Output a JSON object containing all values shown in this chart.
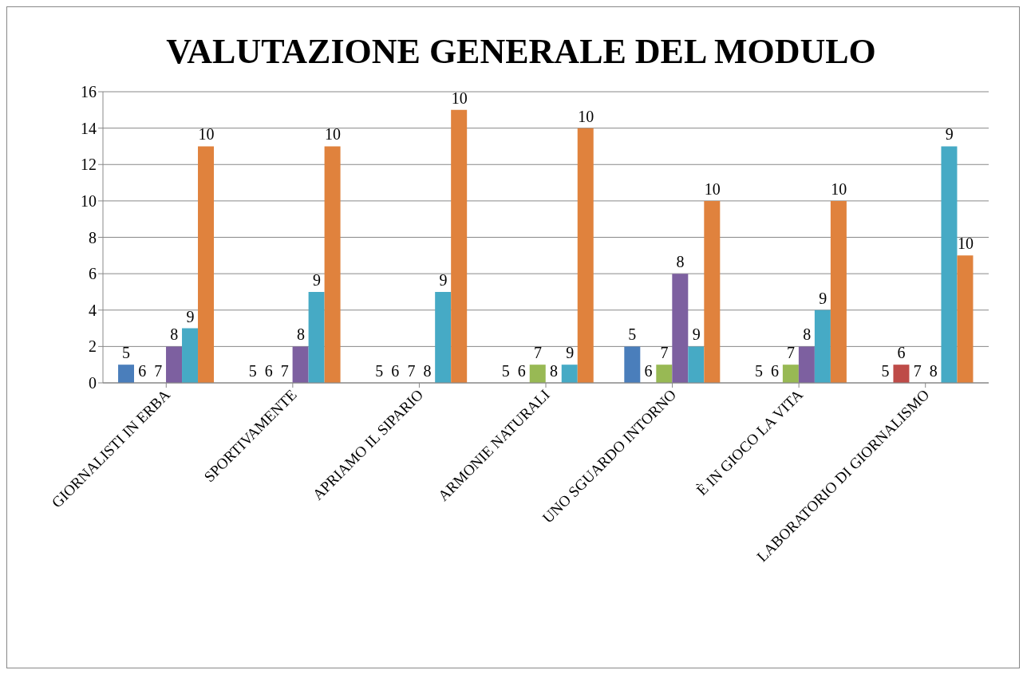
{
  "chart_data": {
    "type": "bar",
    "title": "VALUTAZIONE GENERALE DEL MODULO",
    "categories": [
      "GIORNALISTI IN ERBA",
      "SPORTIVAMENTE",
      "APRIAMO IL SIPARIO",
      "ARMONIE NATURALI",
      "UNO SGUARDO INTORNO",
      "È IN GIOCO LA VITA",
      "LABORATORIO DI GIORNALISMO"
    ],
    "series": [
      {
        "name": "5",
        "color": "#4a7ebb",
        "values": [
          1,
          0,
          0,
          0,
          2,
          0,
          0
        ]
      },
      {
        "name": "6",
        "color": "#be4b48",
        "values": [
          0,
          0,
          0,
          0,
          0,
          0,
          1
        ]
      },
      {
        "name": "7",
        "color": "#98b954",
        "values": [
          0,
          0,
          0,
          1,
          1,
          1,
          0
        ]
      },
      {
        "name": "8",
        "color": "#7d60a0",
        "values": [
          2,
          2,
          0,
          0,
          6,
          2,
          0
        ]
      },
      {
        "name": "9",
        "color": "#46aac5",
        "values": [
          3,
          5,
          5,
          1,
          2,
          4,
          13
        ]
      },
      {
        "name": "10",
        "color": "#e0823d",
        "values": [
          13,
          13,
          15,
          14,
          10,
          10,
          7
        ]
      }
    ],
    "ylim": [
      0,
      16
    ],
    "yticks": [
      0,
      2,
      4,
      6,
      8,
      10,
      12,
      14,
      16
    ],
    "grid": "y"
  }
}
